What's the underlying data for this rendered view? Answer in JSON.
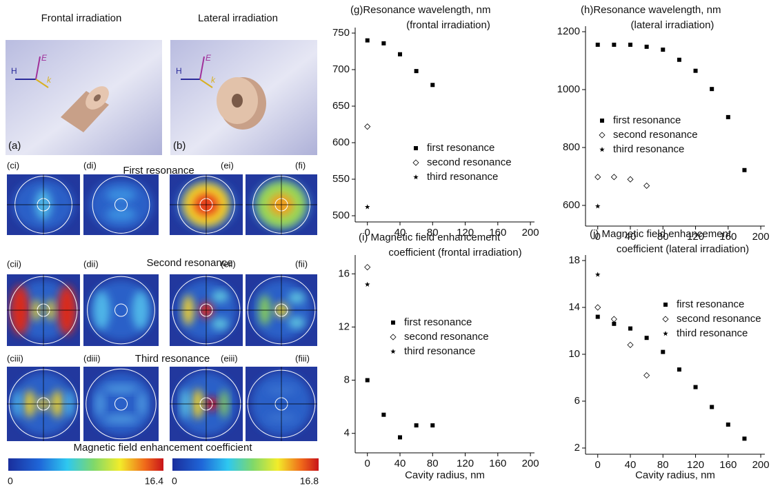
{
  "panels": {
    "frontal": "Frontal irradiation",
    "lateral": "Lateral irradiation",
    "label_a": "(a)",
    "label_b": "(b)",
    "rows": [
      {
        "title": "First resonance",
        "labels": [
          "(ci)",
          "(di)",
          "(ei)",
          "(fi)"
        ]
      },
      {
        "title": "Second resonance",
        "labels": [
          "(cii)",
          "(dii)",
          "(eii)",
          "(fii)"
        ]
      },
      {
        "title": "Third resonance",
        "labels": [
          "(ciii)",
          "(diii)",
          "(eiii)",
          "(fiii)"
        ]
      }
    ],
    "colorbar_title": "Magnetic field enhancement coefficient",
    "colorbars": [
      {
        "min": 0,
        "max": 16.4
      },
      {
        "min": 0,
        "max": 16.8
      }
    ]
  },
  "chart_data": [
    {
      "type": "scatter",
      "title": "(g)Resonance wavelength, nm",
      "subtitle": "(frontal irradiation)",
      "xlim": [
        -15,
        205
      ],
      "xticks": [
        0,
        40,
        80,
        120,
        160,
        200
      ],
      "ylim": [
        500,
        750
      ],
      "yticks": [
        500,
        550,
        600,
        650,
        700,
        750
      ],
      "series": [
        {
          "name": "first resonance",
          "color": "#000000",
          "marker": "square",
          "x": [
            0,
            20,
            40,
            60,
            80
          ],
          "values": [
            740,
            736,
            721,
            698,
            679
          ]
        },
        {
          "name": "second resonance",
          "color": "#000000",
          "marker": "diamond",
          "x": [
            0
          ],
          "values": [
            622
          ]
        },
        {
          "name": "third resonance",
          "color": "#000000",
          "marker": "star",
          "x": [
            0
          ],
          "values": [
            512
          ]
        }
      ]
    },
    {
      "type": "scatter",
      "title": "(h)Resonance wavelength, nm",
      "subtitle": "(lateral irradiation)",
      "xlim": [
        -15,
        205
      ],
      "xticks": [
        0,
        40,
        80,
        120,
        160,
        200
      ],
      "ylim": [
        550,
        1200
      ],
      "yticks": [
        600,
        800,
        1000,
        1200
      ],
      "series": [
        {
          "name": "first resonance",
          "color": "#000000",
          "marker": "square",
          "x": [
            0,
            20,
            40,
            60,
            80,
            100,
            120,
            140,
            160,
            180
          ],
          "values": [
            1155,
            1155,
            1155,
            1148,
            1138,
            1103,
            1065,
            1002,
            905,
            722
          ]
        },
        {
          "name": "second resonance",
          "color": "#000000",
          "marker": "diamond",
          "x": [
            0,
            20,
            40,
            60
          ],
          "values": [
            698,
            698,
            690,
            668
          ]
        },
        {
          "name": "third resonance",
          "color": "#000000",
          "marker": "star",
          "x": [
            0
          ],
          "values": [
            597
          ]
        }
      ]
    },
    {
      "type": "scatter",
      "title": "(i)  Magnetic field enhancement",
      "subtitle": "coefficient (frontal irradiation)",
      "xlabel": "Cavity radius, nm",
      "xlim": [
        -15,
        205
      ],
      "xticks": [
        0,
        40,
        80,
        120,
        160,
        200
      ],
      "ylim": [
        3,
        17
      ],
      "yticks": [
        4,
        8,
        12,
        16
      ],
      "series": [
        {
          "name": "first resonance",
          "color": "#000000",
          "marker": "square",
          "x": [
            0,
            20,
            40,
            60,
            80
          ],
          "values": [
            8,
            5.4,
            3.7,
            4.6,
            4.6
          ]
        },
        {
          "name": "second resonance",
          "color": "#000000",
          "marker": "diamond",
          "x": [
            0
          ],
          "values": [
            16.5
          ]
        },
        {
          "name": "third resonance",
          "color": "#000000",
          "marker": "star",
          "x": [
            0
          ],
          "values": [
            15.2
          ]
        }
      ]
    },
    {
      "type": "scatter",
      "title": "(j)  Magnetic field enhancement",
      "subtitle": "coefficient (lateral irradiation)",
      "xlabel": "Cavity radius, nm",
      "xlim": [
        -15,
        205
      ],
      "xticks": [
        0,
        40,
        80,
        120,
        160,
        200
      ],
      "ylim": [
        2,
        18
      ],
      "yticks": [
        2,
        6,
        10,
        14,
        18
      ],
      "series": [
        {
          "name": "first resonance",
          "color": "#000000",
          "marker": "square",
          "x": [
            0,
            20,
            40,
            60,
            80,
            100,
            120,
            140,
            160,
            180
          ],
          "values": [
            13.2,
            12.6,
            12.2,
            11.4,
            10.2,
            8.7,
            7.2,
            5.5,
            4,
            2.8
          ]
        },
        {
          "name": "second resonance",
          "color": "#000000",
          "marker": "diamond",
          "x": [
            0,
            20,
            40,
            60
          ],
          "values": [
            14,
            13,
            10.8,
            8.2
          ]
        },
        {
          "name": "third resonance",
          "color": "#000000",
          "marker": "star",
          "x": [
            0
          ],
          "values": [
            16.8
          ]
        }
      ]
    }
  ]
}
